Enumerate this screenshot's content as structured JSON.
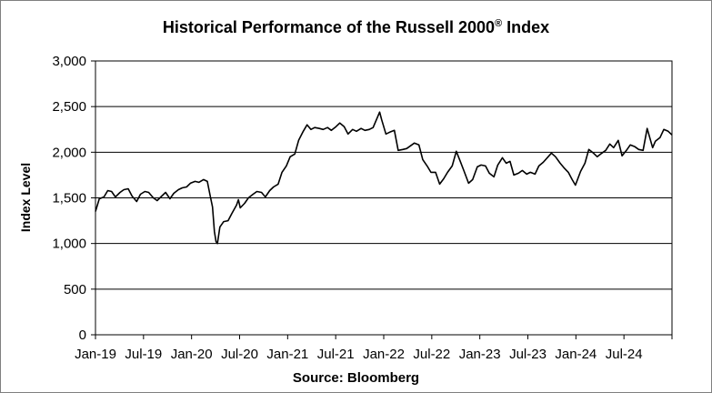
{
  "chart_data": {
    "type": "line",
    "title": "Historical  Performance of the Russell 2000",
    "title_mark": "®",
    "title_suffix": " Index",
    "ylabel": "Index Level",
    "xlabel": "Source: Bloomberg",
    "ylim": [
      0,
      3000
    ],
    "yticks": [
      "0",
      "500",
      "1,000",
      "1,500",
      "2,000",
      "2,500",
      "3,000"
    ],
    "ytick_values": [
      0,
      500,
      1000,
      1500,
      2000,
      2500,
      3000
    ],
    "xticks": [
      "Jan-19",
      "Jul-19",
      "Jan-20",
      "Jul-20",
      "Jan-21",
      "Jul-21",
      "Jan-22",
      "Jul-22",
      "Jan-23",
      "Jul-23",
      "Jan-24",
      "Jul-24"
    ],
    "grid": "horizontal",
    "legend": "none",
    "line_color": "#000000",
    "series": [
      {
        "x": [
          "2019-01-01",
          "2019-01-15",
          "2019-02-01",
          "2019-02-15",
          "2019-03-01",
          "2019-03-15",
          "2019-04-01",
          "2019-04-15",
          "2019-05-01",
          "2019-05-15",
          "2019-06-01",
          "2019-06-15",
          "2019-07-01",
          "2019-07-15",
          "2019-08-01",
          "2019-08-15",
          "2019-09-01",
          "2019-09-15",
          "2019-10-01",
          "2019-10-15",
          "2019-11-01",
          "2019-11-15",
          "2019-12-01",
          "2019-12-15",
          "2020-01-01",
          "2020-01-15",
          "2020-02-01",
          "2020-02-15",
          "2020-02-25",
          "2020-03-05",
          "2020-03-12",
          "2020-03-18",
          "2020-03-23",
          "2020-04-01",
          "2020-04-15",
          "2020-05-01",
          "2020-05-15",
          "2020-06-01",
          "2020-06-08",
          "2020-06-15",
          "2020-07-01",
          "2020-07-15",
          "2020-08-01",
          "2020-08-15",
          "2020-09-01",
          "2020-09-15",
          "2020-10-01",
          "2020-10-15",
          "2020-11-01",
          "2020-11-15",
          "2020-12-01",
          "2020-12-15",
          "2021-01-01",
          "2021-01-15",
          "2021-02-01",
          "2021-02-15",
          "2021-03-01",
          "2021-03-15",
          "2021-04-01",
          "2021-04-15",
          "2021-05-01",
          "2021-05-15",
          "2021-06-01",
          "2021-06-15",
          "2021-07-01",
          "2021-07-15",
          "2021-08-01",
          "2021-08-15",
          "2021-09-01",
          "2021-09-15",
          "2021-10-01",
          "2021-10-15",
          "2021-11-01",
          "2021-11-08",
          "2021-11-15",
          "2021-12-01",
          "2021-12-15",
          "2022-01-01",
          "2022-01-15",
          "2022-02-01",
          "2022-02-15",
          "2022-03-01",
          "2022-03-15",
          "2022-04-01",
          "2022-04-15",
          "2022-05-01",
          "2022-05-15",
          "2022-06-01",
          "2022-06-16",
          "2022-07-01",
          "2022-07-15",
          "2022-08-01",
          "2022-08-16",
          "2022-09-01",
          "2022-09-15",
          "2022-09-30",
          "2022-10-15",
          "2022-11-01",
          "2022-11-15",
          "2022-12-01",
          "2022-12-15",
          "2023-01-01",
          "2023-01-15",
          "2023-02-01",
          "2023-02-15",
          "2023-03-01",
          "2023-03-15",
          "2023-04-01",
          "2023-04-15",
          "2023-05-01",
          "2023-05-15",
          "2023-06-01",
          "2023-06-15",
          "2023-07-01",
          "2023-07-31",
          "2023-08-15",
          "2023-09-01",
          "2023-09-15",
          "2023-10-01",
          "2023-10-15",
          "2023-10-27",
          "2023-11-15",
          "2023-12-01",
          "2023-12-15",
          "2024-01-01",
          "2024-01-15",
          "2024-02-01",
          "2024-02-15",
          "2024-03-01",
          "2024-03-15",
          "2024-04-01",
          "2024-04-15",
          "2024-05-01",
          "2024-05-15",
          "2024-06-01",
          "2024-06-15",
          "2024-07-01",
          "2024-07-16",
          "2024-08-05",
          "2024-08-15",
          "2024-09-01",
          "2024-09-15",
          "2024-10-01",
          "2024-10-15"
        ],
        "y": [
          1350,
          1490,
          1510,
          1580,
          1570,
          1510,
          1560,
          1590,
          1600,
          1520,
          1460,
          1540,
          1570,
          1560,
          1500,
          1470,
          1520,
          1560,
          1490,
          1550,
          1590,
          1610,
          1620,
          1660,
          1680,
          1670,
          1700,
          1680,
          1530,
          1400,
          1130,
          1020,
          1000,
          1180,
          1240,
          1250,
          1330,
          1420,
          1480,
          1390,
          1440,
          1500,
          1540,
          1570,
          1560,
          1510,
          1580,
          1620,
          1650,
          1780,
          1850,
          1950,
          1980,
          2130,
          2230,
          2300,
          2250,
          2270,
          2260,
          2250,
          2270,
          2240,
          2280,
          2320,
          2280,
          2200,
          2250,
          2230,
          2260,
          2240,
          2250,
          2270,
          2390,
          2440,
          2360,
          2200,
          2220,
          2240,
          2020,
          2030,
          2040,
          2070,
          2100,
          2080,
          1920,
          1850,
          1780,
          1780,
          1650,
          1710,
          1780,
          1850,
          2010,
          1890,
          1780,
          1660,
          1700,
          1840,
          1860,
          1850,
          1770,
          1730,
          1860,
          1940,
          1880,
          1900,
          1750,
          1770,
          1800,
          1760,
          1780,
          1760,
          1850,
          1890,
          1990,
          1950,
          1880,
          1830,
          1780,
          1700,
          1640,
          1790,
          1880,
          2030,
          1990,
          1950,
          1990,
          2020,
          2090,
          2050,
          2130,
          1960,
          2020,
          2080,
          2060,
          2030,
          2020,
          2260,
          2050,
          2120,
          2160,
          2250,
          2230,
          2190
        ]
      }
    ]
  }
}
